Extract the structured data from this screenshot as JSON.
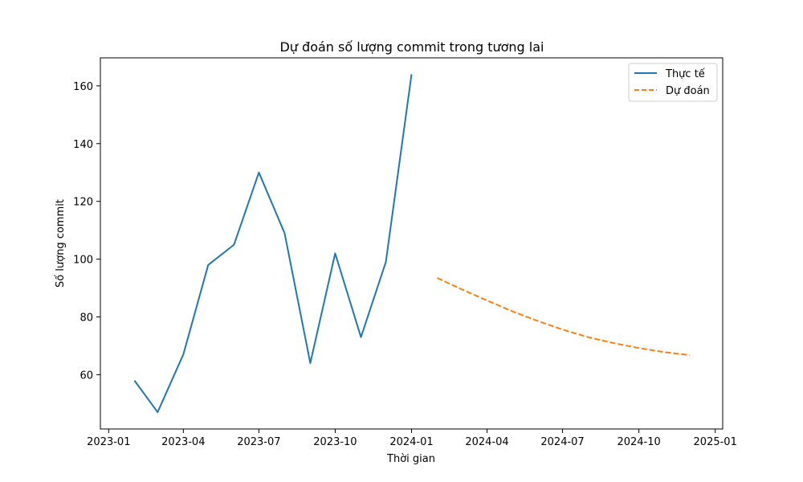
{
  "chart_data": {
    "type": "line",
    "title": "Dự đoán số lượng commit trong tương lai",
    "xlabel": "Thời gian",
    "ylabel": "Số lượng commit",
    "x_ticks": [
      "2023-01",
      "2023-04",
      "2023-07",
      "2023-10",
      "2024-01",
      "2024-04",
      "2024-07",
      "2024-10",
      "2025-01"
    ],
    "y_ticks": [
      60,
      80,
      100,
      120,
      140,
      160
    ],
    "xlim": [
      "2022-12-22",
      "2025-01-10"
    ],
    "ylim": [
      41.2,
      169.7
    ],
    "grid": false,
    "legend_position": "top-right",
    "series": [
      {
        "name": "Thực tế",
        "style": "solid",
        "color": "#1f77b4",
        "points": [
          {
            "x": "2023-02-01",
            "y": 58
          },
          {
            "x": "2023-03-01",
            "y": 47
          },
          {
            "x": "2023-04-01",
            "y": 67
          },
          {
            "x": "2023-05-01",
            "y": 98
          },
          {
            "x": "2023-06-01",
            "y": 105
          },
          {
            "x": "2023-07-01",
            "y": 130
          },
          {
            "x": "2023-08-01",
            "y": 109
          },
          {
            "x": "2023-09-01",
            "y": 64
          },
          {
            "x": "2023-10-01",
            "y": 102
          },
          {
            "x": "2023-11-01",
            "y": 73
          },
          {
            "x": "2023-12-01",
            "y": 99
          },
          {
            "x": "2024-01-01",
            "y": 164
          }
        ]
      },
      {
        "name": "Dự đoán",
        "style": "dashed",
        "color": "#ff7f0e",
        "points": [
          {
            "x": "2024-02-01",
            "y": 93.5
          },
          {
            "x": "2024-03-01",
            "y": 89.6
          },
          {
            "x": "2024-04-01",
            "y": 85.7
          },
          {
            "x": "2024-05-01",
            "y": 82.0
          },
          {
            "x": "2024-06-01",
            "y": 78.6
          },
          {
            "x": "2024-07-01",
            "y": 75.6
          },
          {
            "x": "2024-08-01",
            "y": 73.0
          },
          {
            "x": "2024-09-01",
            "y": 70.9
          },
          {
            "x": "2024-10-01",
            "y": 69.2
          },
          {
            "x": "2024-11-01",
            "y": 67.8
          },
          {
            "x": "2024-12-01",
            "y": 66.8
          }
        ]
      }
    ]
  }
}
